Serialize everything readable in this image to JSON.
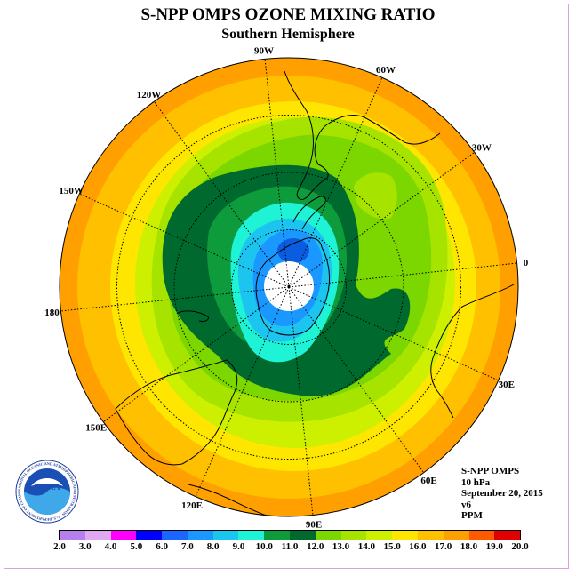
{
  "header": {
    "title": "S-NPP OMPS OZONE MIXING RATIO",
    "subtitle": "Southern Hemisphere"
  },
  "map": {
    "longitude_labels": [
      "90W",
      "60W",
      "30W",
      "0",
      "30E",
      "60E",
      "90E",
      "120E",
      "150E",
      "180",
      "150W",
      "120W"
    ],
    "colors": {
      "ocean_outer": "#ff9f00",
      "band_16_17": "#ffc000",
      "band_15_16": "#ffe600",
      "band_14_15": "#cdf000",
      "band_13_14": "#a6e400",
      "band_12_13": "#7cd600",
      "band_11_12": "#006a2e",
      "band_10_11": "#0e9b3c",
      "band_9_10": "#1ff3d6",
      "band_8_9": "#1bc5f0",
      "band_7_8": "#1a98ff",
      "band_6_7": "#0a5de0",
      "pole_hole": "#ffffff"
    }
  },
  "info": {
    "instrument": "S-NPP OMPS",
    "level": "10 hPa",
    "date": "September 20, 2015",
    "version": "v6",
    "units": "PPM"
  },
  "logo": {
    "text": "NOAA",
    "ring_text": "NATIONAL OCEANIC AND ATMOSPHERIC ADMINISTRATION · U.S. DEPARTMENT OF COMMERCE"
  },
  "colorbar": {
    "labels": [
      "2.0",
      "3.0",
      "4.0",
      "5.0",
      "6.0",
      "7.0",
      "8.0",
      "9.0",
      "10.0",
      "11.0",
      "12.0",
      "13.0",
      "14.0",
      "15.0",
      "16.0",
      "17.0",
      "18.0",
      "19.0",
      "20.0"
    ],
    "colors": [
      "#b57ff0",
      "#e0a8f0",
      "#ff00ff",
      "#0000ff",
      "#1a66ff",
      "#1a98ff",
      "#1bc5f0",
      "#1ff3d6",
      "#0e9b3c",
      "#006a2e",
      "#7cd600",
      "#a6e400",
      "#cdf000",
      "#ffe600",
      "#ffc000",
      "#ff9f00",
      "#ff5a00",
      "#e00000",
      "#8b5a3c"
    ]
  }
}
